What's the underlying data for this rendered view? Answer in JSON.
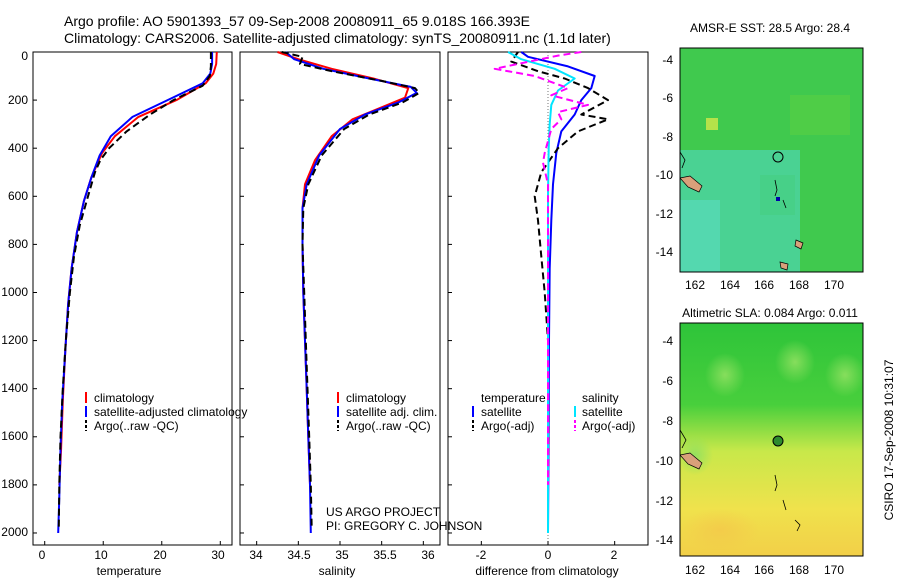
{
  "header": {
    "line1": "Argo profile: AO 5901393_57 09-Sep-2008 20080911_65 9.018S 166.393E",
    "line2": "Climatology: CARS2006. Satellite-adjusted climatology: synTS_20080911.nc (1.1d later)"
  },
  "credits": {
    "project": "US ARGO PROJECT",
    "pi": "PI: GREGORY C. JOHNSON",
    "stamp": "CSIRO 17-Sep-2008 10:31:07"
  },
  "colors": {
    "climatology": "#ff0000",
    "satellite": "#0000ff",
    "argo": "#000000",
    "sal_satellite": "#00e5ff",
    "sal_argo": "#ff00ff",
    "land": "#d9a07a"
  },
  "chart_data": [
    {
      "type": "line",
      "panel": "temperature",
      "xlabel": "temperature",
      "ylabel": "",
      "xlim": [
        -2,
        32
      ],
      "ylim": [
        2050,
        0
      ],
      "xticks": [
        0,
        10,
        20,
        30
      ],
      "yticks": [
        0,
        200,
        400,
        600,
        800,
        1000,
        1200,
        1400,
        1600,
        1800,
        2000
      ],
      "legend": [
        "climatology",
        "satellite-adjusted climatology",
        "Argo(..raw -QC)"
      ],
      "series": [
        {
          "name": "climatology",
          "style": "solid",
          "color": "#ff0000",
          "points": [
            [
              29.4,
              0
            ],
            [
              29.3,
              50
            ],
            [
              28.8,
              90
            ],
            [
              27.5,
              130
            ],
            [
              22.5,
              200
            ],
            [
              16,
              270
            ],
            [
              12,
              350
            ],
            [
              9.8,
              420
            ],
            [
              8,
              520
            ],
            [
              6.7,
              620
            ],
            [
              5.5,
              750
            ],
            [
              4.6,
              900
            ],
            [
              4,
              1050
            ],
            [
              3.5,
              1250
            ],
            [
              3.1,
              1450
            ],
            [
              2.8,
              1650
            ],
            [
              2.5,
              1800
            ]
          ]
        },
        {
          "name": "satellite-adjusted climatology",
          "style": "solid",
          "color": "#0000ff",
          "points": [
            [
              28.6,
              0
            ],
            [
              28.6,
              50
            ],
            [
              28.3,
              90
            ],
            [
              27,
              130
            ],
            [
              21,
              200
            ],
            [
              15,
              270
            ],
            [
              11.3,
              350
            ],
            [
              9.4,
              430
            ],
            [
              8,
              520
            ],
            [
              6.7,
              620
            ],
            [
              5.5,
              750
            ],
            [
              4.6,
              900
            ],
            [
              4,
              1050
            ],
            [
              3.5,
              1250
            ],
            [
              3,
              1450
            ],
            [
              2.7,
              1650
            ],
            [
              2.5,
              1850
            ],
            [
              2.3,
              2000
            ]
          ]
        },
        {
          "name": "Argo(..raw -QC)",
          "style": "dash",
          "color": "#000000",
          "points": [
            [
              28.4,
              0
            ],
            [
              28.4,
              60
            ],
            [
              28.2,
              100
            ],
            [
              27,
              140
            ],
            [
              22,
              200
            ],
            [
              18,
              260
            ],
            [
              14,
              330
            ],
            [
              11,
              400
            ],
            [
              9.5,
              450
            ],
            [
              8.6,
              500
            ],
            [
              7.4,
              600
            ],
            [
              6,
              720
            ],
            [
              5,
              850
            ],
            [
              4.3,
              1000
            ],
            [
              3.6,
              1200
            ],
            [
              3.1,
              1400
            ],
            [
              2.7,
              1600
            ],
            [
              2.5,
              1800
            ],
            [
              2.4,
              1980
            ]
          ]
        }
      ]
    },
    {
      "type": "line",
      "panel": "salinity",
      "xlabel": "salinity",
      "xlim": [
        33.8,
        36.2
      ],
      "ylim": [
        2050,
        0
      ],
      "xticks": [
        34,
        34.5,
        35,
        35.5,
        36
      ],
      "legend": [
        "climatology",
        "satellite adj. clim.",
        "Argo(..raw -QC)"
      ],
      "series": [
        {
          "name": "climatology",
          "style": "solid",
          "color": "#ff0000",
          "points": [
            [
              34.25,
              0
            ],
            [
              34.5,
              30
            ],
            [
              34.9,
              70
            ],
            [
              35.4,
              110
            ],
            [
              35.82,
              150
            ],
            [
              35.78,
              190
            ],
            [
              35.5,
              230
            ],
            [
              35.15,
              280
            ],
            [
              34.9,
              350
            ],
            [
              34.7,
              450
            ],
            [
              34.58,
              550
            ],
            [
              34.55,
              650
            ],
            [
              34.55,
              800
            ],
            [
              34.56,
              1000
            ],
            [
              34.58,
              1200
            ],
            [
              34.6,
              1400
            ],
            [
              34.62,
              1600
            ],
            [
              34.64,
              1800
            ]
          ]
        },
        {
          "name": "satellite adj. clim.",
          "style": "solid",
          "color": "#0000ff",
          "points": [
            [
              34.35,
              0
            ],
            [
              34.45,
              30
            ],
            [
              34.8,
              70
            ],
            [
              35.35,
              110
            ],
            [
              35.85,
              145
            ],
            [
              35.92,
              170
            ],
            [
              35.7,
              210
            ],
            [
              35.3,
              260
            ],
            [
              35,
              320
            ],
            [
              34.75,
              430
            ],
            [
              34.6,
              550
            ],
            [
              34.55,
              650
            ],
            [
              34.55,
              800
            ],
            [
              34.56,
              1000
            ],
            [
              34.58,
              1200
            ],
            [
              34.6,
              1400
            ],
            [
              34.62,
              1600
            ],
            [
              34.64,
              1800
            ],
            [
              34.65,
              2000
            ]
          ]
        },
        {
          "name": "Argo(..raw -QC)",
          "style": "dash",
          "color": "#000000",
          "points": [
            [
              34.3,
              0
            ],
            [
              34.55,
              20
            ],
            [
              34.52,
              50
            ],
            [
              34.9,
              80
            ],
            [
              35.5,
              120
            ],
            [
              35.9,
              150
            ],
            [
              35.95,
              170
            ],
            [
              35.75,
              210
            ],
            [
              35.35,
              260
            ],
            [
              35.05,
              320
            ],
            [
              34.78,
              430
            ],
            [
              34.62,
              550
            ],
            [
              34.56,
              650
            ],
            [
              34.55,
              800
            ],
            [
              34.57,
              1000
            ],
            [
              34.59,
              1200
            ],
            [
              34.61,
              1400
            ],
            [
              34.63,
              1600
            ],
            [
              34.65,
              1800
            ],
            [
              34.66,
              1980
            ]
          ]
        }
      ]
    },
    {
      "type": "line",
      "panel": "difference",
      "xlabel": "difference from climatology",
      "xlim": [
        -3,
        3
      ],
      "ylim": [
        2050,
        0
      ],
      "xticks": [
        -2,
        0,
        2
      ],
      "legend": [
        "temperature",
        "satellite",
        "Argo(-adj)",
        "salinity",
        "satellite",
        "Argo(-adj)"
      ],
      "series": [
        {
          "name": "temperature satellite",
          "style": "solid",
          "color": "#0000ff",
          "points": [
            [
              -0.8,
              0
            ],
            [
              -0.6,
              20
            ],
            [
              0.6,
              60
            ],
            [
              1.4,
              100
            ],
            [
              1.3,
              150
            ],
            [
              1,
              200
            ],
            [
              0.8,
              260
            ],
            [
              0.4,
              330
            ],
            [
              0.25,
              420
            ],
            [
              0.15,
              550
            ],
            [
              0.1,
              700
            ],
            [
              0.05,
              900
            ],
            [
              0.03,
              1200
            ],
            [
              0.02,
              1500
            ],
            [
              0.01,
              1800
            ],
            [
              0,
              2000
            ]
          ]
        },
        {
          "name": "temperature Argo(-adj)",
          "style": "dash",
          "color": "#000000",
          "points": [
            [
              -0.9,
              0
            ],
            [
              -1.1,
              40
            ],
            [
              -0.3,
              80
            ],
            [
              0.5,
              110
            ],
            [
              1.2,
              150
            ],
            [
              1.8,
              200
            ],
            [
              1,
              260
            ],
            [
              1.8,
              280
            ],
            [
              0.9,
              330
            ],
            [
              0.3,
              400
            ],
            [
              -0.2,
              500
            ],
            [
              -0.4,
              600
            ],
            [
              -0.3,
              700
            ],
            [
              -0.2,
              850
            ],
            [
              -0.1,
              1000
            ],
            [
              0,
              1200
            ],
            [
              0,
              1400
            ],
            [
              0.01,
              1600
            ],
            [
              0,
              1800
            ],
            [
              0,
              1980
            ]
          ]
        },
        {
          "name": "salinity satellite",
          "style": "solid",
          "color": "#00e5ff",
          "points": [
            [
              -1.2,
              0
            ],
            [
              -0.8,
              30
            ],
            [
              0.2,
              70
            ],
            [
              0.8,
              110
            ],
            [
              0.3,
              160
            ],
            [
              0.1,
              220
            ],
            [
              0.05,
              300
            ],
            [
              0.02,
              400
            ],
            [
              0,
              600
            ],
            [
              0,
              1000
            ],
            [
              0,
              1500
            ],
            [
              0,
              2000
            ]
          ]
        },
        {
          "name": "salinity Argo(-adj)",
          "style": "dash",
          "color": "#ff00ff",
          "points": [
            [
              1,
              0
            ],
            [
              0.3,
              15
            ],
            [
              -1.6,
              70
            ],
            [
              -0.4,
              100
            ],
            [
              0.6,
              150
            ],
            [
              0.1,
              180
            ],
            [
              1.2,
              220
            ],
            [
              0.3,
              250
            ],
            [
              0.4,
              280
            ],
            [
              0.1,
              320
            ],
            [
              -0.1,
              420
            ],
            [
              -0.15,
              460
            ],
            [
              0,
              550
            ],
            [
              0,
              800
            ],
            [
              0,
              1200
            ],
            [
              0,
              1800
            ]
          ]
        }
      ]
    },
    {
      "type": "heatmap",
      "panel": "sst-map",
      "title": "AMSR-E SST: 28.5 Argo: 28.4",
      "xlim": [
        161.2,
        171.7
      ],
      "ylim": [
        -15,
        -3.3
      ],
      "xticks": [
        162,
        164,
        166,
        168,
        170
      ],
      "yticks": [
        -4,
        -6,
        -8,
        -10,
        -12,
        -14
      ],
      "argo_position": [
        166.393,
        -9.018
      ],
      "colors": {
        "base": "#3fc94f",
        "cool": "#4fd6a6",
        "warm_spot": "#a8e24a"
      }
    },
    {
      "type": "heatmap",
      "panel": "sla-map",
      "title": "Altimetric SLA: 0.084 Argo: 0.011",
      "xlim": [
        161.2,
        171.7
      ],
      "ylim": [
        -15,
        -3.3
      ],
      "xticks": [
        162,
        164,
        166,
        168,
        170
      ],
      "yticks": [
        -4,
        -6,
        -8,
        -10,
        -12,
        -14
      ],
      "argo_position": [
        166.393,
        -9.018
      ],
      "colors": {
        "top": "#2ec43a",
        "mid": "#c8e84a",
        "bottom": "#f2d84a",
        "bump": "#6fd85a"
      }
    }
  ]
}
